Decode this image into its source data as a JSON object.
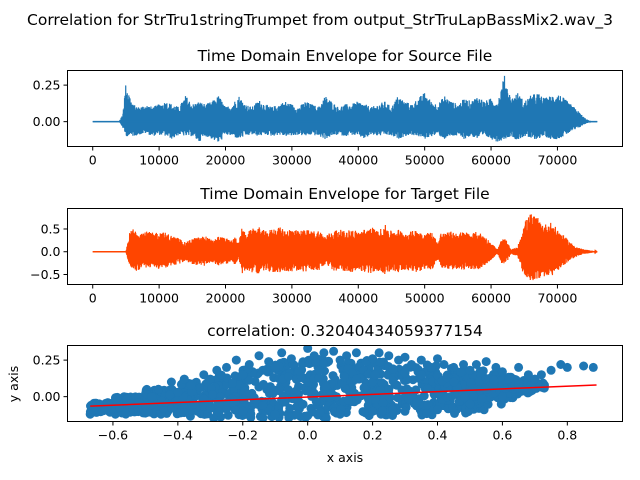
{
  "figure": {
    "suptitle": "Correlation for StrTru1stringTrumpet from output_StrTruLapBassMix2.wav_3"
  },
  "chart_data": [
    {
      "type": "line",
      "title": "Time Domain Envelope for Source File",
      "xlabel": "",
      "ylabel": "",
      "xlim": [
        -3800,
        79800
      ],
      "ylim": [
        -0.17,
        0.35
      ],
      "xticks": [
        0,
        10000,
        20000,
        30000,
        40000,
        50000,
        60000,
        70000
      ],
      "xtick_labels": [
        "0",
        "10000",
        "20000",
        "30000",
        "40000",
        "50000",
        "60000",
        "70000"
      ],
      "yticks": [
        0.0,
        0.25
      ],
      "ytick_labels": [
        "0.00",
        "0.25"
      ],
      "color": "#1f77b4",
      "series": [
        {
          "x": [
            0,
            4000,
            4500,
            5000,
            6000,
            7000,
            8000,
            9000,
            10000,
            11000,
            12000,
            13000,
            14000,
            15000,
            16000,
            17000,
            18000,
            19000,
            20000,
            21000,
            22000,
            23000,
            24000,
            25000,
            26000,
            27000,
            28000,
            29000,
            30000,
            31000,
            32000,
            33000,
            34000,
            35000,
            36000,
            37000,
            38000,
            39000,
            40000,
            41000,
            42000,
            43000,
            44000,
            45000,
            46000,
            47000,
            48000,
            49000,
            50000,
            51000,
            52000,
            53000,
            54000,
            55000,
            56000,
            57000,
            58000,
            59000,
            60000,
            61000,
            62000,
            63000,
            64000,
            65000,
            66000,
            67000,
            68000,
            69000,
            70000,
            71000,
            72000,
            73000,
            74000,
            75000,
            76000
          ],
          "upper": [
            0.0,
            0.0,
            0.05,
            0.27,
            0.12,
            0.1,
            0.12,
            0.1,
            0.12,
            0.14,
            0.12,
            0.1,
            0.18,
            0.12,
            0.14,
            0.12,
            0.14,
            0.18,
            0.1,
            0.12,
            0.18,
            0.12,
            0.1,
            0.15,
            0.12,
            0.1,
            0.12,
            0.14,
            0.12,
            0.1,
            0.14,
            0.12,
            0.1,
            0.18,
            0.14,
            0.1,
            0.12,
            0.12,
            0.14,
            0.12,
            0.1,
            0.12,
            0.14,
            0.1,
            0.18,
            0.14,
            0.12,
            0.16,
            0.2,
            0.14,
            0.12,
            0.18,
            0.14,
            0.12,
            0.16,
            0.14,
            0.18,
            0.14,
            0.16,
            0.14,
            0.32,
            0.16,
            0.2,
            0.14,
            0.18,
            0.2,
            0.16,
            0.18,
            0.2,
            0.16,
            0.12,
            0.08,
            0.03,
            0.0,
            0.0
          ],
          "lower": [
            0.0,
            0.0,
            -0.04,
            -0.1,
            -0.1,
            -0.09,
            -0.08,
            -0.1,
            -0.09,
            -0.1,
            -0.12,
            -0.09,
            -0.1,
            -0.1,
            -0.14,
            -0.1,
            -0.12,
            -0.15,
            -0.09,
            -0.1,
            -0.12,
            -0.1,
            -0.09,
            -0.1,
            -0.09,
            -0.1,
            -0.09,
            -0.1,
            -0.1,
            -0.09,
            -0.1,
            -0.09,
            -0.1,
            -0.12,
            -0.1,
            -0.09,
            -0.1,
            -0.09,
            -0.1,
            -0.12,
            -0.09,
            -0.1,
            -0.09,
            -0.1,
            -0.12,
            -0.1,
            -0.09,
            -0.1,
            -0.12,
            -0.1,
            -0.09,
            -0.12,
            -0.1,
            -0.1,
            -0.12,
            -0.1,
            -0.12,
            -0.1,
            -0.12,
            -0.14,
            -0.12,
            -0.1,
            -0.13,
            -0.1,
            -0.12,
            -0.12,
            -0.1,
            -0.12,
            -0.12,
            -0.1,
            -0.07,
            -0.05,
            -0.02,
            0.0,
            0.0
          ]
        }
      ]
    },
    {
      "type": "line",
      "title": "Time Domain Envelope for Target File",
      "xlabel": "",
      "ylabel": "",
      "xlim": [
        -3800,
        79800
      ],
      "ylim": [
        -0.72,
        0.95
      ],
      "xticks": [
        0,
        10000,
        20000,
        30000,
        40000,
        50000,
        60000,
        70000
      ],
      "xtick_labels": [
        "0",
        "10000",
        "20000",
        "30000",
        "40000",
        "50000",
        "60000",
        "70000"
      ],
      "yticks": [
        -0.5,
        0.0,
        0.5
      ],
      "ytick_labels": [
        "−0.5",
        "0.0",
        "0.5"
      ],
      "color": "#ff4500",
      "series": [
        {
          "x": [
            0,
            5000,
            5500,
            6000,
            7000,
            8000,
            9000,
            10000,
            11000,
            12000,
            13000,
            14000,
            15000,
            16000,
            17000,
            18000,
            19000,
            20000,
            21000,
            21500,
            22000,
            22500,
            23000,
            24000,
            25000,
            26000,
            27000,
            28000,
            29000,
            30000,
            31000,
            32000,
            33000,
            34000,
            35000,
            36000,
            37000,
            38000,
            39000,
            40000,
            41000,
            42000,
            43000,
            44000,
            45000,
            46000,
            47000,
            48000,
            49000,
            50000,
            51000,
            52000,
            52500,
            53000,
            54000,
            55000,
            56000,
            57000,
            58000,
            59000,
            60000,
            61000,
            61500,
            62000,
            62500,
            63000,
            64000,
            65000,
            66000,
            67000,
            68000,
            69000,
            70000,
            71000,
            72000,
            73000,
            74000,
            75000,
            76000
          ],
          "upper": [
            0.0,
            0.0,
            0.4,
            0.52,
            0.45,
            0.45,
            0.42,
            0.45,
            0.42,
            0.35,
            0.3,
            0.2,
            0.3,
            0.32,
            0.35,
            0.25,
            0.35,
            0.3,
            0.25,
            0.35,
            0.2,
            0.55,
            0.4,
            0.5,
            0.55,
            0.45,
            0.5,
            0.55,
            0.48,
            0.52,
            0.45,
            0.5,
            0.45,
            0.48,
            0.35,
            0.45,
            0.5,
            0.45,
            0.5,
            0.45,
            0.5,
            0.55,
            0.45,
            0.6,
            0.45,
            0.5,
            0.42,
            0.45,
            0.5,
            0.4,
            0.45,
            0.2,
            0.45,
            0.4,
            0.45,
            0.42,
            0.45,
            0.4,
            0.45,
            0.35,
            0.2,
            0.05,
            0.25,
            0.3,
            0.2,
            0.05,
            0.1,
            0.65,
            0.85,
            0.75,
            0.6,
            0.65,
            0.5,
            0.35,
            0.2,
            0.1,
            0.05,
            0.03,
            0.0
          ],
          "lower": [
            0.0,
            0.0,
            -0.3,
            -0.45,
            -0.4,
            -0.35,
            -0.35,
            -0.38,
            -0.35,
            -0.3,
            -0.28,
            -0.2,
            -0.28,
            -0.3,
            -0.32,
            -0.25,
            -0.3,
            -0.28,
            -0.22,
            -0.3,
            -0.15,
            -0.5,
            -0.4,
            -0.45,
            -0.48,
            -0.42,
            -0.45,
            -0.48,
            -0.42,
            -0.45,
            -0.42,
            -0.45,
            -0.4,
            -0.42,
            -0.3,
            -0.4,
            -0.45,
            -0.42,
            -0.45,
            -0.42,
            -0.45,
            -0.48,
            -0.42,
            -0.5,
            -0.42,
            -0.45,
            -0.4,
            -0.42,
            -0.45,
            -0.4,
            -0.42,
            -0.18,
            -0.42,
            -0.38,
            -0.4,
            -0.38,
            -0.4,
            -0.38,
            -0.4,
            -0.32,
            -0.18,
            -0.05,
            -0.25,
            -0.3,
            -0.2,
            -0.05,
            -0.1,
            -0.55,
            -0.65,
            -0.6,
            -0.55,
            -0.55,
            -0.42,
            -0.3,
            -0.18,
            -0.1,
            -0.05,
            -0.03,
            0.0
          ]
        }
      ]
    },
    {
      "type": "scatter",
      "title": "correlation: 0.32040434059377154",
      "xlabel": "x axis",
      "ylabel": "y axis",
      "xlim": [
        -0.74,
        0.97
      ],
      "ylim": [
        -0.17,
        0.35
      ],
      "xticks": [
        -0.6,
        -0.4,
        -0.2,
        0.0,
        0.2,
        0.4,
        0.6,
        0.8
      ],
      "xtick_labels": [
        "−0.6",
        "−0.4",
        "−0.2",
        "0.0",
        "0.2",
        "0.4",
        "0.6",
        "0.8"
      ],
      "yticks": [
        0.0,
        0.25
      ],
      "ytick_labels": [
        "0.00",
        "0.25"
      ],
      "color": "#1f77b4",
      "fit_color": "#ff0000",
      "fit_line": {
        "x": [
          -0.67,
          0.89
        ],
        "y": [
          -0.065,
          0.08
        ]
      },
      "points": [
        [
          -0.67,
          -0.12
        ],
        [
          -0.66,
          -0.09
        ],
        [
          -0.6,
          -0.08
        ],
        [
          -0.58,
          -0.07
        ],
        [
          -0.55,
          -0.05
        ],
        [
          -0.52,
          -0.04
        ],
        [
          -0.5,
          -0.06
        ],
        [
          -0.48,
          0.0
        ],
        [
          -0.46,
          0.05
        ],
        [
          -0.45,
          -0.03
        ],
        [
          -0.42,
          0.1
        ],
        [
          -0.4,
          0.03
        ],
        [
          -0.38,
          0.12
        ],
        [
          -0.36,
          0.08
        ],
        [
          -0.35,
          -0.05
        ],
        [
          -0.32,
          0.15
        ],
        [
          -0.3,
          0.12
        ],
        [
          -0.28,
          0.18
        ],
        [
          -0.25,
          0.2
        ],
        [
          -0.22,
          0.25
        ],
        [
          -0.2,
          0.15
        ],
        [
          -0.18,
          0.22
        ],
        [
          -0.15,
          0.28
        ],
        [
          -0.12,
          0.24
        ],
        [
          -0.1,
          0.2
        ],
        [
          -0.08,
          0.3
        ],
        [
          -0.05,
          0.26
        ],
        [
          0.0,
          0.33
        ],
        [
          0.02,
          0.28
        ],
        [
          0.05,
          0.3
        ],
        [
          0.08,
          0.31
        ],
        [
          0.1,
          0.25
        ],
        [
          0.12,
          0.28
        ],
        [
          0.15,
          0.3
        ],
        [
          0.18,
          0.24
        ],
        [
          0.2,
          0.26
        ],
        [
          0.22,
          0.3
        ],
        [
          0.25,
          0.28
        ],
        [
          0.28,
          0.25
        ],
        [
          0.3,
          0.27
        ],
        [
          0.32,
          0.22
        ],
        [
          0.35,
          0.25
        ],
        [
          0.38,
          0.2
        ],
        [
          0.4,
          0.26
        ],
        [
          0.42,
          0.22
        ],
        [
          0.45,
          0.2
        ],
        [
          0.48,
          0.22
        ],
        [
          0.5,
          0.18
        ],
        [
          0.52,
          0.22
        ],
        [
          0.55,
          0.24
        ],
        [
          0.58,
          0.2
        ],
        [
          0.6,
          0.17
        ],
        [
          0.62,
          0.12
        ],
        [
          0.65,
          0.2
        ],
        [
          0.68,
          0.15
        ],
        [
          0.7,
          0.12
        ],
        [
          0.72,
          0.15
        ],
        [
          0.75,
          0.18
        ],
        [
          0.78,
          0.22
        ],
        [
          0.8,
          0.2
        ],
        [
          0.85,
          0.21
        ],
        [
          0.88,
          0.2
        ],
        [
          -0.3,
          -0.08
        ],
        [
          -0.2,
          -0.1
        ],
        [
          -0.1,
          -0.12
        ],
        [
          0.0,
          -0.13
        ],
        [
          0.1,
          -0.12
        ],
        [
          0.2,
          -0.1
        ],
        [
          0.3,
          -0.1
        ],
        [
          0.4,
          -0.09
        ],
        [
          0.5,
          -0.05
        ],
        [
          0.6,
          0.0
        ],
        [
          0.55,
          0.05
        ],
        [
          0.45,
          0.1
        ],
        [
          0.35,
          0.15
        ],
        [
          0.25,
          0.05
        ],
        [
          0.15,
          0.12
        ],
        [
          0.05,
          0.0
        ]
      ],
      "cloud": [
        [
          -0.62,
          -0.11,
          -0.04
        ],
        [
          -0.55,
          -0.12,
          0.0
        ],
        [
          -0.45,
          -0.13,
          0.05
        ],
        [
          -0.35,
          -0.14,
          0.1
        ],
        [
          -0.25,
          -0.15,
          0.15
        ],
        [
          -0.15,
          -0.15,
          0.2
        ],
        [
          -0.05,
          -0.15,
          0.24
        ],
        [
          0.05,
          -0.15,
          0.26
        ],
        [
          0.15,
          -0.14,
          0.25
        ],
        [
          0.25,
          -0.14,
          0.24
        ],
        [
          0.35,
          -0.13,
          0.22
        ],
        [
          0.45,
          -0.12,
          0.2
        ],
        [
          0.5,
          -0.1,
          0.18
        ],
        [
          0.55,
          -0.06,
          0.16
        ],
        [
          0.6,
          -0.02,
          0.14
        ],
        [
          0.65,
          0.02,
          0.12
        ],
        [
          0.68,
          0.05,
          0.1
        ]
      ]
    }
  ]
}
